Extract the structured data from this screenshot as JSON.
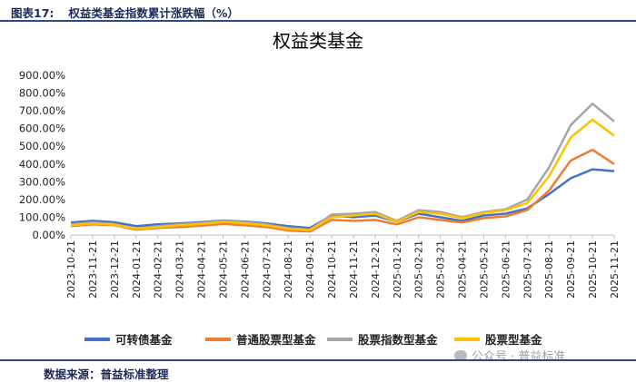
{
  "header": {
    "figure_num": "图表17:",
    "figure_title": "权益类基金指数累计涨跌幅（%）"
  },
  "footer": {
    "source": "数据来源：普益标准整理"
  },
  "watermark": {
    "text": "公众号 · 普益标准"
  },
  "chart_data": {
    "type": "line",
    "title": "权益类基金",
    "xlabel": "",
    "ylabel": "",
    "ylim": [
      0,
      900
    ],
    "yticks": [
      0,
      100,
      200,
      300,
      400,
      500,
      600,
      700,
      800,
      900
    ],
    "ytick_labels": [
      "0.00%",
      "100.00%",
      "200.00%",
      "300.00%",
      "400.00%",
      "500.00%",
      "600.00%",
      "700.00%",
      "800.00%",
      "900.00%"
    ],
    "categories": [
      "2023-10-21",
      "2023-11-21",
      "2023-12-21",
      "2024-01-21",
      "2024-02-21",
      "2024-03-21",
      "2024-04-21",
      "2024-05-21",
      "2024-06-21",
      "2024-07-21",
      "2024-08-21",
      "2024-09-21",
      "2024-10-21",
      "2024-11-21",
      "2024-12-21",
      "2025-01-21",
      "2025-02-21",
      "2025-03-21",
      "2025-04-21",
      "2025-05-21",
      "2025-06-21",
      "2025-07-21",
      "2025-08-21",
      "2025-09-21",
      "2025-10-21",
      "2025-11-21"
    ],
    "legend_position": "bottom",
    "series": [
      {
        "name": "可转债基金",
        "color": "#4472C4",
        "values": [
          70,
          80,
          72,
          50,
          60,
          65,
          72,
          82,
          75,
          65,
          50,
          40,
          110,
          100,
          110,
          75,
          120,
          100,
          80,
          110,
          120,
          150,
          230,
          320,
          370,
          360
        ]
      },
      {
        "name": "普通股票型基金",
        "color": "#ED7D31",
        "values": [
          50,
          60,
          55,
          30,
          40,
          45,
          52,
          62,
          55,
          45,
          25,
          20,
          85,
          80,
          85,
          60,
          100,
          85,
          70,
          95,
          105,
          140,
          250,
          420,
          480,
          400
        ]
      },
      {
        "name": "股票指数型基金",
        "color": "#A5A5A5",
        "values": [
          60,
          70,
          62,
          35,
          50,
          60,
          68,
          80,
          72,
          60,
          40,
          30,
          115,
          120,
          130,
          80,
          140,
          130,
          100,
          130,
          145,
          200,
          380,
          620,
          740,
          640
        ]
      },
      {
        "name": "股票型基金",
        "color": "#FFC000",
        "values": [
          55,
          65,
          58,
          35,
          45,
          55,
          62,
          74,
          66,
          54,
          35,
          28,
          100,
          110,
          120,
          75,
          130,
          120,
          95,
          125,
          140,
          180,
          330,
          550,
          650,
          560
        ]
      }
    ]
  }
}
